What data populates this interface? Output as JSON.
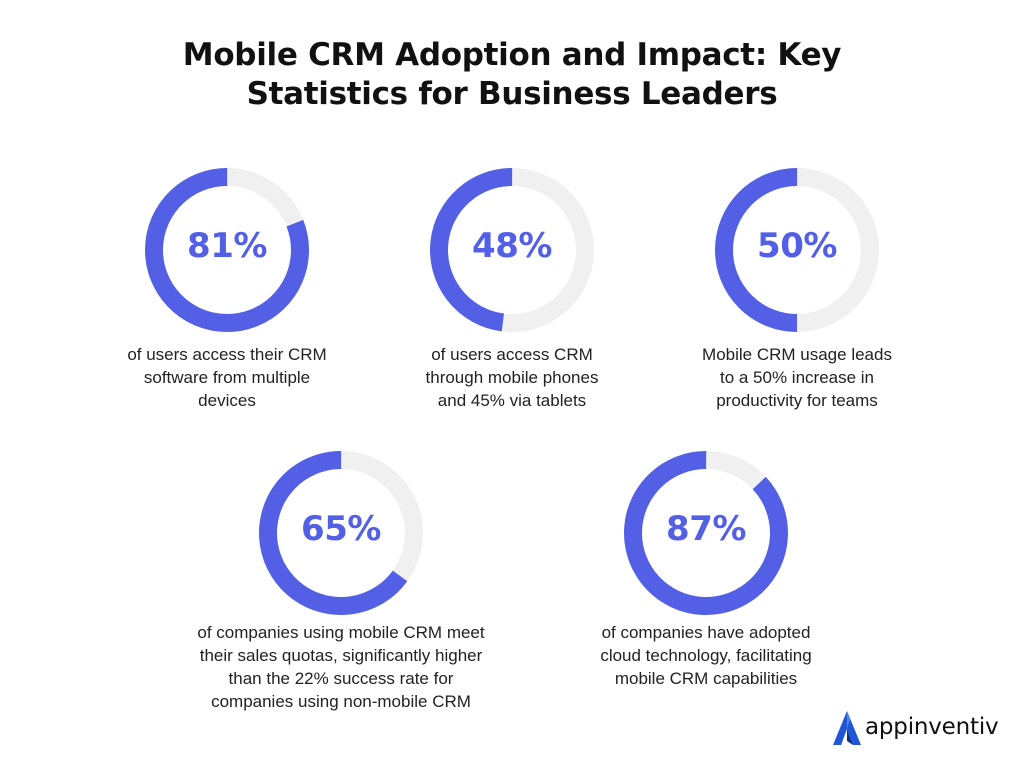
{
  "chart_data": {
    "type": "donut",
    "title_lines": [
      "Mobile CRM Adoption and Impact: Key",
      "Statistics for Business Leaders"
    ],
    "accent_color": "#5360e6",
    "track_color": "#f0f0f0",
    "series": [
      {
        "value": 81,
        "label": "81%",
        "caption_lines": [
          "of users access their CRM",
          "software from multiple",
          "devices"
        ]
      },
      {
        "value": 48,
        "label": "48%",
        "caption_lines": [
          "of users access CRM",
          "through mobile phones",
          "and 45% via tablets"
        ]
      },
      {
        "value": 50,
        "label": "50%",
        "caption_lines": [
          "Mobile CRM usage leads",
          "to a 50% increase in",
          "productivity for teams"
        ]
      },
      {
        "value": 65,
        "label": "65%",
        "caption_lines": [
          "of companies using mobile CRM meet",
          "their sales quotas, significantly higher",
          "than the 22% success rate for",
          "companies using non-mobile CRM"
        ]
      },
      {
        "value": 87,
        "label": "87%",
        "caption_lines": [
          "of companies have adopted",
          "cloud technology, facilitating",
          "mobile CRM capabilities"
        ]
      }
    ]
  },
  "brand": {
    "name": "appinventiv",
    "logo_icon": "appinventiv-logo-icon"
  }
}
